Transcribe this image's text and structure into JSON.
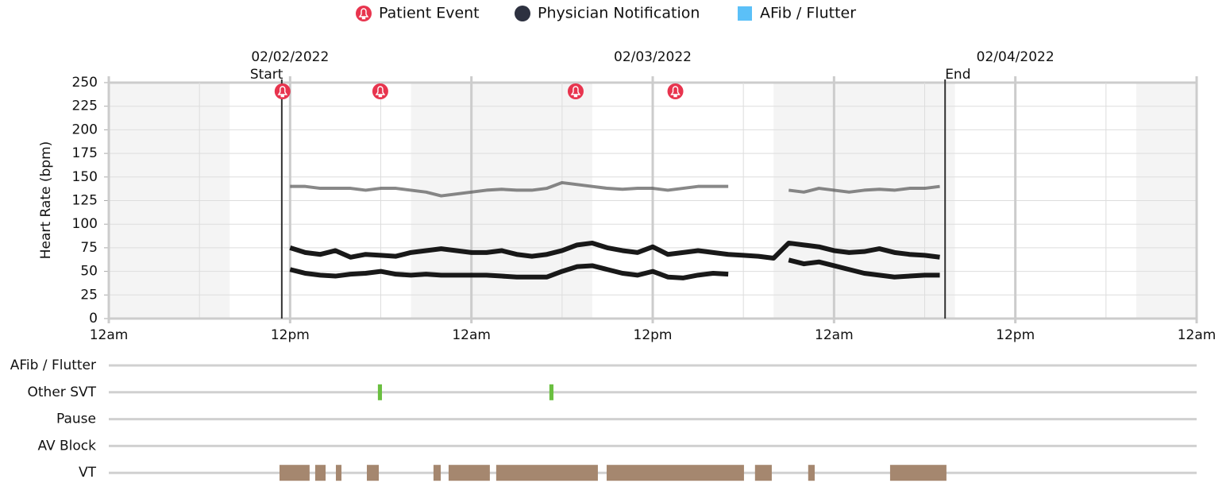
{
  "chart_data": {
    "type": "line",
    "ylabel": "Heart Rate (bpm)",
    "xlim": [
      0,
      72
    ],
    "xticks": [
      {
        "value": 0,
        "label": "12am"
      },
      {
        "value": 12,
        "label": "12pm"
      },
      {
        "value": 24,
        "label": "12am"
      },
      {
        "value": 36,
        "label": "12pm"
      },
      {
        "value": 48,
        "label": "12am"
      },
      {
        "value": 60,
        "label": "12pm"
      },
      {
        "value": 72,
        "label": "12am"
      }
    ],
    "xminor": [
      6,
      18,
      30,
      42,
      54,
      66
    ],
    "ylim": [
      0,
      250
    ],
    "yticks": [
      0,
      25,
      50,
      75,
      100,
      125,
      150,
      175,
      200,
      225,
      250
    ],
    "grid": true,
    "shaded_ranges": [
      [
        0,
        8
      ],
      [
        20,
        32
      ],
      [
        44,
        56
      ],
      [
        68,
        72
      ]
    ],
    "legend": [
      {
        "label": "Patient Event",
        "color": "#e8344e"
      },
      {
        "label": "Physician Notification",
        "color": "#2d3140"
      },
      {
        "label": "AFib / Flutter",
        "color": "#5bc0f8"
      }
    ],
    "date_labels": [
      {
        "label": "02/02/2022",
        "x": 12
      },
      {
        "label": "02/03/2022",
        "x": 36
      },
      {
        "label": "02/04/2022",
        "x": 60
      }
    ],
    "start": {
      "label": "Start",
      "x": 11.45
    },
    "end": {
      "label": "End",
      "x": 55.35
    },
    "patient_events": [
      11.5,
      17.97,
      30.9,
      37.5
    ],
    "x": [
      12,
      13,
      14,
      15,
      16,
      17,
      18,
      19,
      20,
      21,
      22,
      23,
      24,
      25,
      26,
      27,
      28,
      29,
      30,
      31,
      32,
      33,
      34,
      35,
      36,
      37,
      38,
      39,
      40,
      41,
      42,
      43,
      44,
      45,
      46,
      47,
      48,
      49,
      50,
      51,
      52,
      53,
      54,
      55
    ],
    "series": [
      {
        "color": "#555555",
        "values": [
          140,
          140,
          138,
          138,
          138,
          136,
          138,
          138,
          136,
          134,
          130,
          132,
          134,
          136,
          137,
          136,
          136,
          138,
          144,
          142,
          140,
          138,
          137,
          138,
          138,
          136,
          138,
          140,
          140,
          140,
          null,
          null,
          null,
          136,
          134,
          138,
          136,
          134,
          136,
          137,
          136,
          138,
          138,
          140
        ]
      },
      {
        "color": "#000000",
        "values": [
          75,
          70,
          68,
          72,
          65,
          68,
          67,
          66,
          70,
          72,
          74,
          72,
          70,
          70,
          72,
          68,
          66,
          68,
          72,
          78,
          80,
          75,
          72,
          70,
          76,
          68,
          70,
          72,
          70,
          68,
          67,
          66,
          64,
          80,
          78,
          76,
          72,
          70,
          71,
          74,
          70,
          68,
          67,
          65
        ]
      },
      {
        "color": "#000000",
        "values": [
          52,
          48,
          46,
          45,
          47,
          48,
          50,
          47,
          46,
          47,
          46,
          46,
          46,
          46,
          45,
          44,
          44,
          44,
          50,
          55,
          56,
          52,
          48,
          46,
          50,
          44,
          43,
          46,
          48,
          47,
          null,
          null,
          null,
          62,
          58,
          60,
          56,
          52,
          48,
          46,
          44,
          45,
          46,
          46
        ]
      }
    ],
    "tracks": [
      {
        "name": "AFib / Flutter",
        "color": "#5bc0f8",
        "episodes": []
      },
      {
        "name": "Other SVT",
        "color": "#6abf40",
        "episodes": [
          [
            17.81,
            18.08
          ],
          [
            29.16,
            29.43
          ]
        ]
      },
      {
        "name": "Pause",
        "color": "#a5876f",
        "episodes": []
      },
      {
        "name": "AV Block",
        "color": "#a5876f",
        "episodes": []
      },
      {
        "name": "VT",
        "color": "#a5876f",
        "episodes": [
          [
            11.3,
            13.29
          ],
          [
            13.66,
            14.35
          ],
          [
            15.03,
            15.4
          ],
          [
            17.08,
            17.87
          ],
          [
            21.49,
            21.97
          ],
          [
            22.49,
            25.22
          ],
          [
            25.64,
            32.37
          ],
          [
            32.95,
            42.04
          ],
          [
            42.77,
            43.88
          ],
          [
            46.29,
            46.72
          ],
          [
            51.71,
            55.44
          ]
        ]
      }
    ]
  }
}
